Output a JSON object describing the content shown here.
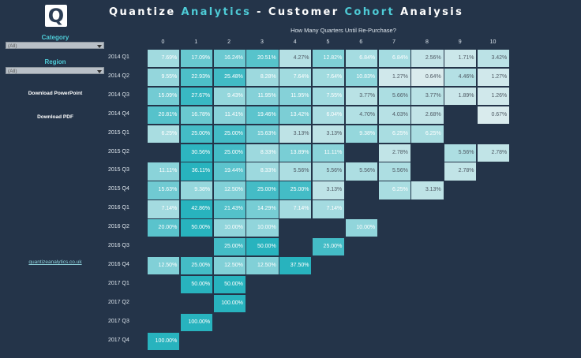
{
  "header": {
    "logo_letter": "Q",
    "title_parts": [
      "Quantize ",
      "Analytics",
      " - Customer ",
      "Cohort",
      " Analysis"
    ]
  },
  "filters": {
    "category_label": "Category",
    "category_value": "(All)",
    "region_label": "Region",
    "region_value": "(All)"
  },
  "actions": {
    "download_ppt": "Download PowerPoint",
    "download_pdf": "Download PDF"
  },
  "footer_link": "quantizeanalytics.co.uk",
  "chart_data": {
    "type": "heatmap",
    "title": "How Many Quarters Until Re-Purchase?",
    "x": [
      0,
      1,
      2,
      3,
      4,
      5,
      6,
      7,
      8,
      9,
      10
    ],
    "y": [
      "2014 Q1",
      "2014 Q2",
      "2014 Q3",
      "2014 Q4",
      "2015 Q1",
      "2015 Q2",
      "2015 Q3",
      "2015 Q4",
      "2016 Q1",
      "2016 Q2",
      "2016 Q3",
      "2016 Q4",
      "2017 Q1",
      "2017 Q2",
      "2017 Q3",
      "2017 Q4"
    ],
    "values": [
      [
        7.69,
        17.09,
        16.24,
        20.51,
        4.27,
        12.82,
        6.84,
        6.84,
        2.56,
        1.71,
        3.42
      ],
      [
        9.55,
        22.93,
        25.48,
        8.28,
        7.64,
        7.64,
        10.83,
        1.27,
        0.64,
        4.46,
        1.27
      ],
      [
        15.09,
        27.67,
        9.43,
        11.95,
        11.95,
        7.55,
        3.77,
        5.66,
        3.77,
        1.89,
        1.26
      ],
      [
        20.81,
        16.78,
        11.41,
        19.46,
        13.42,
        6.04,
        4.7,
        4.03,
        2.68,
        null,
        0.67
      ],
      [
        6.25,
        25.0,
        25.0,
        15.63,
        3.13,
        3.13,
        9.38,
        6.25,
        6.25,
        null,
        null
      ],
      [
        null,
        30.56,
        25.0,
        8.33,
        13.89,
        11.11,
        null,
        2.78,
        null,
        5.56,
        2.78
      ],
      [
        11.11,
        36.11,
        19.44,
        8.33,
        5.56,
        5.56,
        5.56,
        5.56,
        null,
        2.78,
        null
      ],
      [
        15.63,
        9.38,
        12.5,
        25.0,
        25.0,
        3.13,
        null,
        6.25,
        3.13,
        null,
        null
      ],
      [
        7.14,
        42.86,
        21.43,
        14.29,
        7.14,
        7.14,
        null,
        null,
        null,
        null,
        null
      ],
      [
        20.0,
        50.0,
        10.0,
        10.0,
        null,
        null,
        10.0,
        null,
        null,
        null,
        null
      ],
      [
        null,
        null,
        25.0,
        50.0,
        null,
        25.0,
        null,
        null,
        null,
        null,
        null
      ],
      [
        12.5,
        25.0,
        12.5,
        12.5,
        37.5,
        null,
        null,
        null,
        null,
        null,
        null
      ],
      [
        null,
        50.0,
        50.0,
        null,
        null,
        null,
        null,
        null,
        null,
        null,
        null
      ],
      [
        null,
        null,
        100.0,
        null,
        null,
        null,
        null,
        null,
        null,
        null,
        null
      ],
      [
        null,
        100.0,
        null,
        null,
        null,
        null,
        null,
        null,
        null,
        null,
        null
      ],
      [
        100.0,
        null,
        null,
        null,
        null,
        null,
        null,
        null,
        null,
        null,
        null
      ]
    ],
    "value_format": "percent_2dp",
    "colors": {
      "low": "#f1f2f3",
      "mid": "#9fdadf",
      "high": "#28b3be"
    }
  }
}
